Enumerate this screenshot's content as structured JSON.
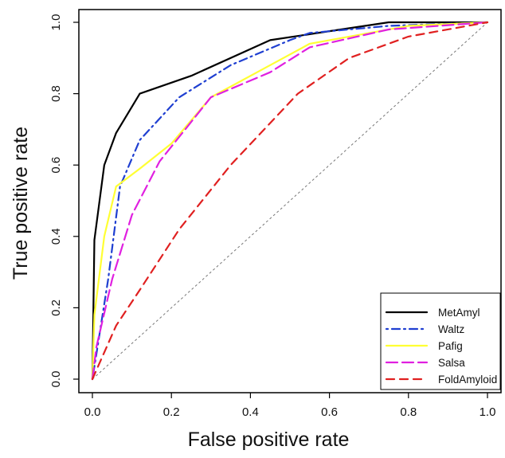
{
  "chart_data": {
    "type": "line",
    "title": "",
    "xlabel": "False positive rate",
    "ylabel": "True positive rate",
    "xlim": [
      0,
      1
    ],
    "ylim": [
      0,
      1
    ],
    "xticks": [
      "0.0",
      "0.2",
      "0.4",
      "0.6",
      "0.8",
      "1.0"
    ],
    "yticks": [
      "0.0",
      "0.2",
      "0.4",
      "0.6",
      "0.8",
      "1.0"
    ],
    "grid": false,
    "legend_position": "bottom-right",
    "reference_line": {
      "points": [
        [
          0,
          0
        ],
        [
          1,
          1
        ]
      ],
      "color": "#777777"
    },
    "series": [
      {
        "name": "MetAmyl",
        "color": "#000000",
        "dash": "solid",
        "points": [
          [
            0,
            0
          ],
          [
            0.005,
            0.39
          ],
          [
            0.03,
            0.6
          ],
          [
            0.06,
            0.69
          ],
          [
            0.12,
            0.8
          ],
          [
            0.25,
            0.85
          ],
          [
            0.45,
            0.95
          ],
          [
            0.57,
            0.97
          ],
          [
            0.75,
            1.0
          ],
          [
            0.85,
            1.0
          ],
          [
            1.0,
            1.0
          ]
        ]
      },
      {
        "name": "Waltz",
        "color": "#1f3fd1",
        "dash": "dotdash",
        "points": [
          [
            0,
            0
          ],
          [
            0.01,
            0.07
          ],
          [
            0.04,
            0.28
          ],
          [
            0.07,
            0.54
          ],
          [
            0.12,
            0.67
          ],
          [
            0.22,
            0.79
          ],
          [
            0.35,
            0.88
          ],
          [
            0.5,
            0.95
          ],
          [
            0.55,
            0.97
          ],
          [
            0.75,
            0.99
          ],
          [
            1.0,
            1.0
          ]
        ]
      },
      {
        "name": "Pafig",
        "color": "#ffff33",
        "dash": "solid",
        "points": [
          [
            0,
            0
          ],
          [
            0.005,
            0.18
          ],
          [
            0.03,
            0.4
          ],
          [
            0.06,
            0.54
          ],
          [
            0.12,
            0.59
          ],
          [
            0.2,
            0.66
          ],
          [
            0.3,
            0.79
          ],
          [
            0.45,
            0.88
          ],
          [
            0.55,
            0.94
          ],
          [
            0.8,
            0.99
          ],
          [
            1.0,
            1.0
          ]
        ]
      },
      {
        "name": "Salsa",
        "color": "#e020e0",
        "dash": "longdash",
        "points": [
          [
            0,
            0
          ],
          [
            0.01,
            0.09
          ],
          [
            0.05,
            0.28
          ],
          [
            0.1,
            0.46
          ],
          [
            0.17,
            0.61
          ],
          [
            0.3,
            0.79
          ],
          [
            0.45,
            0.86
          ],
          [
            0.55,
            0.93
          ],
          [
            0.75,
            0.98
          ],
          [
            1.0,
            1.0
          ]
        ]
      },
      {
        "name": "FoldAmyloid",
        "color": "#e02020",
        "dash": "dashed",
        "points": [
          [
            0,
            0
          ],
          [
            0.06,
            0.15
          ],
          [
            0.12,
            0.25
          ],
          [
            0.22,
            0.42
          ],
          [
            0.35,
            0.6
          ],
          [
            0.52,
            0.8
          ],
          [
            0.65,
            0.9
          ],
          [
            0.8,
            0.96
          ],
          [
            1.0,
            1.0
          ]
        ]
      }
    ]
  }
}
